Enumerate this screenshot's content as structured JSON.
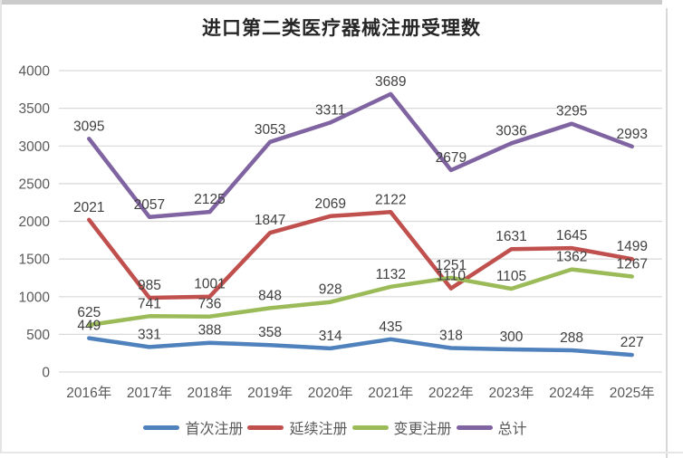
{
  "title": "进口第二类医疗器械注册受理数",
  "chart_data": {
    "type": "line",
    "categories": [
      "2016年",
      "2017年",
      "2018年",
      "2019年",
      "2020年",
      "2021年",
      "2022年",
      "2023年",
      "2024年",
      "2025年"
    ],
    "series": [
      {
        "name": "首次注册",
        "color": "#4F81BD",
        "values": [
          449,
          331,
          388,
          358,
          314,
          435,
          318,
          300,
          288,
          227
        ]
      },
      {
        "name": "延续注册",
        "color": "#C0504D",
        "values": [
          2021,
          985,
          1001,
          1847,
          2069,
          2122,
          1110,
          1631,
          1645,
          1499
        ]
      },
      {
        "name": "变更注册",
        "color": "#9BBB59",
        "values": [
          625,
          741,
          736,
          848,
          928,
          1132,
          1251,
          1105,
          1362,
          1267
        ]
      },
      {
        "name": "总计",
        "color": "#8064A2",
        "values": [
          3095,
          2057,
          2125,
          3053,
          3311,
          3689,
          2679,
          3036,
          3295,
          2993
        ]
      }
    ],
    "title": "进口第二类医疗器械注册受理数",
    "xlabel": "",
    "ylabel": "",
    "ylim": [
      0,
      4000
    ],
    "ytick_step": 500,
    "yticks": [
      0,
      500,
      1000,
      1500,
      2000,
      2500,
      3000,
      3500,
      4000
    ],
    "grid": true,
    "data_labels": true,
    "legend_position": "bottom"
  },
  "colors": {
    "grid": "#D9D9D9",
    "axis_text": "#595959",
    "data_label_text": "#404040",
    "title_text": "#262626",
    "frame": "#CBCBCB",
    "background": "#FFFFFF"
  }
}
